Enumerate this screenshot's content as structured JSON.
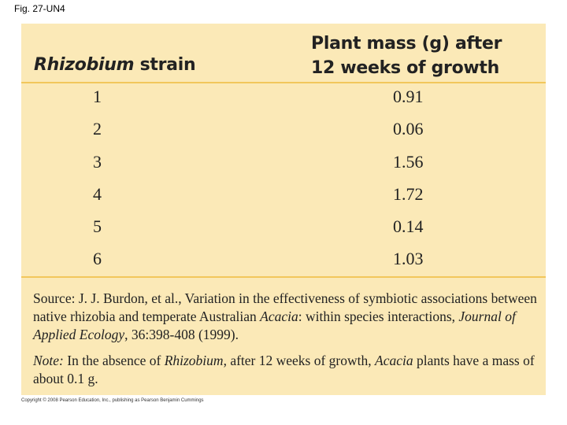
{
  "figure_label": "Fig. 27-UN4",
  "table": {
    "header": {
      "strain_italic": "Rhizobium",
      "strain_rest": " strain",
      "mass_line1": "Plant mass (g) after",
      "mass_line2": "12 weeks of growth"
    },
    "rows": [
      {
        "strain": "1",
        "mass": "0.91"
      },
      {
        "strain": "2",
        "mass": "0.06"
      },
      {
        "strain": "3",
        "mass": "1.56"
      },
      {
        "strain": "4",
        "mass": "1.72"
      },
      {
        "strain": "5",
        "mass": "0.14"
      },
      {
        "strain": "6",
        "mass": "1.03"
      }
    ]
  },
  "source": {
    "part1": "Source:  J. J. Burdon, et al., Variation in the effectiveness of symbiotic associations between native rhizobia and temperate Australian ",
    "italic1": "Acacia",
    "part2": ": within species interactions, ",
    "italic2": "Journal of Applied Ecology",
    "part3": ", 36:398-408 (1999)."
  },
  "note": {
    "label": "Note:",
    "part1": " In the absence of ",
    "italic1": "Rhizobium",
    "part2": ", after 12 weeks of growth, ",
    "italic2": "Acacia",
    "part3": " plants have a mass of about 0.1 g."
  },
  "copyright": "Copyright © 2008 Pearson Education, Inc., publishing as Pearson Benjamin Cummings",
  "colors": {
    "panel_bg": "#fbe9b7",
    "rule": "#f2c75c"
  }
}
